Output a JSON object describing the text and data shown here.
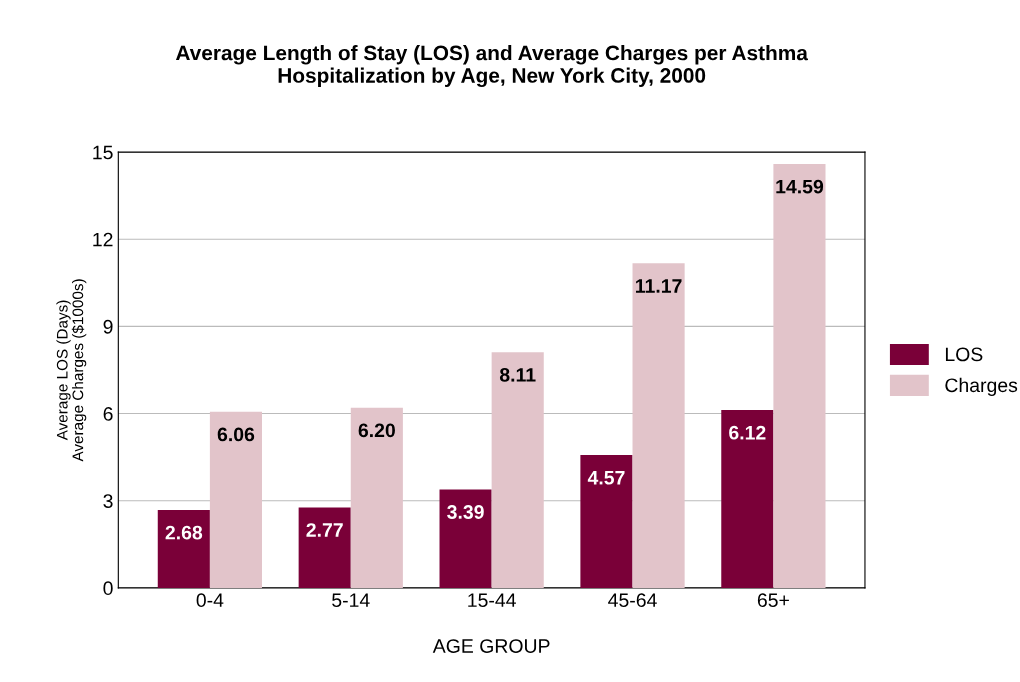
{
  "chart_data": {
    "type": "bar",
    "title": "Average Length of Stay (LOS) and Average Charges per Asthma\nHospitalization by Age, New York City, 2000",
    "xlabel": "AGE GROUP",
    "ylabel": "Average LOS (Days)\nAverage Charges ($1000s)",
    "categories": [
      "0-4",
      "5-14",
      "15-44",
      "45-64",
      "65+"
    ],
    "series": [
      {
        "name": "LOS",
        "color": "#7a0038",
        "values": [
          2.68,
          2.77,
          3.39,
          4.57,
          6.12
        ],
        "value_labels": [
          "2.68",
          "2.77",
          "3.39",
          "4.57",
          "6.12"
        ]
      },
      {
        "name": "Charges",
        "color": "#e2c4ca",
        "values": [
          6.06,
          6.2,
          8.11,
          11.17,
          14.59
        ],
        "value_labels": [
          "6.06",
          "6.20",
          "8.11",
          "11.17",
          "14.59"
        ]
      }
    ],
    "ylim": [
      0,
      15
    ],
    "yticks": [
      0,
      3,
      6,
      9,
      12,
      15
    ],
    "grid": "y",
    "legend": "right"
  }
}
